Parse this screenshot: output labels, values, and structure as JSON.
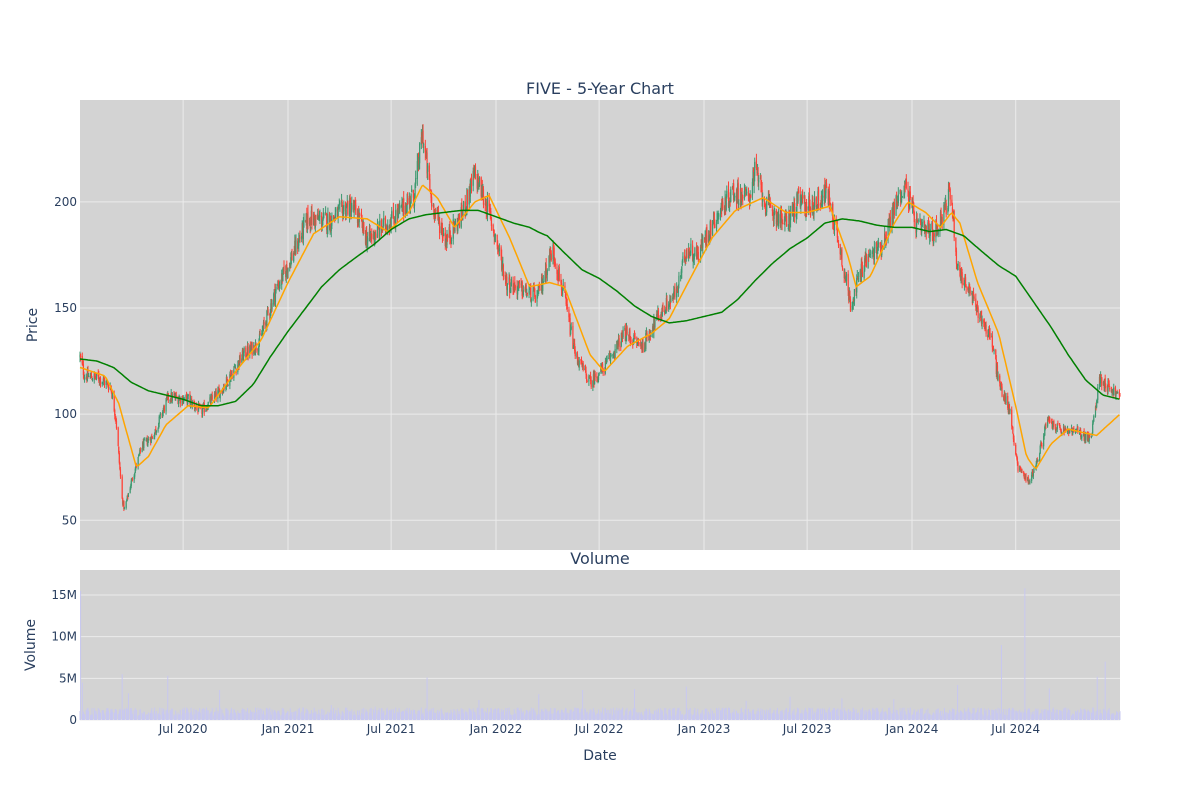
{
  "colors": {
    "plot_bg": "#d3d3d3",
    "grid": "#ebebeb",
    "increasing": "#3d9970",
    "decreasing": "#ff4136",
    "ma_short": "#ffa500",
    "ma_long": "#008000",
    "volume": "#c8c8f0",
    "text": "#2a3f5f"
  },
  "chart_data": [
    {
      "type": "candlestick",
      "title": "FIVE - 5-Year Chart",
      "ylabel": "Price",
      "ylim": [
        36,
        248
      ],
      "yticks": [
        50,
        100,
        150,
        200
      ],
      "xlim": [
        "2020-01-02",
        "2024-12-31"
      ],
      "grid": true,
      "series": [
        {
          "kind": "ohlc"
        },
        {
          "kind": "line",
          "color": "#ffa500"
        },
        {
          "kind": "line",
          "color": "#008000"
        }
      ],
      "price_anchors": [
        [
          "2020-01-02",
          127
        ],
        [
          "2020-01-10",
          118
        ],
        [
          "2020-02-05",
          117
        ],
        [
          "2020-02-25",
          113
        ],
        [
          "2020-03-05",
          98
        ],
        [
          "2020-03-16",
          60
        ],
        [
          "2020-03-20",
          55
        ],
        [
          "2020-04-01",
          68
        ],
        [
          "2020-04-20",
          85
        ],
        [
          "2020-05-10",
          90
        ],
        [
          "2020-06-05",
          108
        ],
        [
          "2020-07-10",
          107
        ],
        [
          "2020-08-01",
          101
        ],
        [
          "2020-09-05",
          111
        ],
        [
          "2020-10-15",
          128
        ],
        [
          "2020-11-10",
          133
        ],
        [
          "2020-12-10",
          158
        ],
        [
          "2021-01-01",
          170
        ],
        [
          "2021-02-05",
          192
        ],
        [
          "2021-03-15",
          191
        ],
        [
          "2021-04-15",
          198
        ],
        [
          "2021-05-01",
          195
        ],
        [
          "2021-05-20",
          182
        ],
        [
          "2021-06-25",
          190
        ],
        [
          "2021-07-15",
          195
        ],
        [
          "2021-08-10",
          203
        ],
        [
          "2021-08-25",
          232
        ],
        [
          "2021-09-10",
          200
        ],
        [
          "2021-10-05",
          182
        ],
        [
          "2021-11-01",
          193
        ],
        [
          "2021-11-25",
          213
        ],
        [
          "2021-12-20",
          195
        ],
        [
          "2022-01-20",
          162
        ],
        [
          "2022-02-20",
          158
        ],
        [
          "2022-03-15",
          155
        ],
        [
          "2022-04-10",
          178
        ],
        [
          "2022-05-01",
          155
        ],
        [
          "2022-05-20",
          128
        ],
        [
          "2022-06-15",
          115
        ],
        [
          "2022-07-10",
          122
        ],
        [
          "2022-08-15",
          138
        ],
        [
          "2022-09-15",
          132
        ],
        [
          "2022-10-10",
          145
        ],
        [
          "2022-11-15",
          158
        ],
        [
          "2022-12-01",
          178
        ],
        [
          "2022-12-20",
          175
        ],
        [
          "2023-01-20",
          192
        ],
        [
          "2023-02-20",
          205
        ],
        [
          "2023-03-20",
          202
        ],
        [
          "2023-04-01",
          215
        ],
        [
          "2023-04-20",
          198
        ],
        [
          "2023-05-25",
          190
        ],
        [
          "2023-06-15",
          200
        ],
        [
          "2023-07-10",
          198
        ],
        [
          "2023-08-05",
          205
        ],
        [
          "2023-08-25",
          182
        ],
        [
          "2023-09-15",
          152
        ],
        [
          "2023-10-10",
          172
        ],
        [
          "2023-11-10",
          180
        ],
        [
          "2023-12-05",
          200
        ],
        [
          "2023-12-20",
          208
        ],
        [
          "2024-01-10",
          188
        ],
        [
          "2024-02-10",
          185
        ],
        [
          "2024-03-10",
          205
        ],
        [
          "2024-03-20",
          170
        ],
        [
          "2024-04-20",
          152
        ],
        [
          "2024-05-20",
          135
        ],
        [
          "2024-06-01",
          115
        ],
        [
          "2024-06-20",
          102
        ],
        [
          "2024-07-05",
          75
        ],
        [
          "2024-07-25",
          68
        ],
        [
          "2024-08-10",
          80
        ],
        [
          "2024-08-25",
          97
        ],
        [
          "2024-09-20",
          92
        ],
        [
          "2024-10-15",
          92
        ],
        [
          "2024-11-10",
          88
        ],
        [
          "2024-11-25",
          117
        ],
        [
          "2024-12-31",
          108
        ]
      ],
      "ma_short_anchors": [
        [
          "2020-01-02",
          122
        ],
        [
          "2020-02-15",
          118
        ],
        [
          "2020-03-10",
          105
        ],
        [
          "2020-04-10",
          75
        ],
        [
          "2020-05-01",
          80
        ],
        [
          "2020-06-01",
          95
        ],
        [
          "2020-07-10",
          104
        ],
        [
          "2020-08-15",
          103
        ],
        [
          "2020-10-01",
          120
        ],
        [
          "2020-11-15",
          135
        ],
        [
          "2021-01-01",
          162
        ],
        [
          "2021-02-15",
          185
        ],
        [
          "2021-04-01",
          193
        ],
        [
          "2021-05-20",
          192
        ],
        [
          "2021-06-25",
          186
        ],
        [
          "2021-08-01",
          195
        ],
        [
          "2021-08-25",
          208
        ],
        [
          "2021-09-20",
          202
        ],
        [
          "2021-10-20",
          188
        ],
        [
          "2021-11-25",
          200
        ],
        [
          "2021-12-20",
          203
        ],
        [
          "2022-01-25",
          183
        ],
        [
          "2022-03-01",
          160
        ],
        [
          "2022-04-05",
          162
        ],
        [
          "2022-05-01",
          160
        ],
        [
          "2022-06-15",
          128
        ],
        [
          "2022-07-10",
          120
        ],
        [
          "2022-08-20",
          132
        ],
        [
          "2022-10-01",
          138
        ],
        [
          "2022-11-01",
          145
        ],
        [
          "2022-12-10",
          165
        ],
        [
          "2023-01-15",
          183
        ],
        [
          "2023-02-25",
          196
        ],
        [
          "2023-04-15",
          202
        ],
        [
          "2023-05-25",
          195
        ],
        [
          "2023-07-01",
          195
        ],
        [
          "2023-08-10",
          198
        ],
        [
          "2023-09-10",
          175
        ],
        [
          "2023-09-25",
          160
        ],
        [
          "2023-10-20",
          165
        ],
        [
          "2023-12-01",
          190
        ],
        [
          "2023-12-25",
          200
        ],
        [
          "2024-01-25",
          195
        ],
        [
          "2024-02-20",
          188
        ],
        [
          "2024-03-10",
          195
        ],
        [
          "2024-03-25",
          190
        ],
        [
          "2024-04-25",
          162
        ],
        [
          "2024-06-01",
          138
        ],
        [
          "2024-06-30",
          105
        ],
        [
          "2024-07-20",
          80
        ],
        [
          "2024-08-05",
          74
        ],
        [
          "2024-09-01",
          86
        ],
        [
          "2024-10-01",
          93
        ],
        [
          "2024-11-01",
          91
        ],
        [
          "2024-11-20",
          90
        ],
        [
          "2024-12-31",
          100
        ]
      ],
      "ma_long_anchors": [
        [
          "2020-01-02",
          126
        ],
        [
          "2020-02-01",
          125
        ],
        [
          "2020-03-01",
          122
        ],
        [
          "2020-04-01",
          115
        ],
        [
          "2020-05-01",
          111
        ],
        [
          "2020-06-01",
          109
        ],
        [
          "2020-07-01",
          107
        ],
        [
          "2020-08-01",
          104
        ],
        [
          "2020-09-01",
          104
        ],
        [
          "2020-10-01",
          106
        ],
        [
          "2020-11-01",
          114
        ],
        [
          "2020-12-01",
          127
        ],
        [
          "2021-01-01",
          139
        ],
        [
          "2021-02-01",
          150
        ],
        [
          "2021-03-01",
          160
        ],
        [
          "2021-04-01",
          168
        ],
        [
          "2021-05-01",
          174
        ],
        [
          "2021-06-01",
          180
        ],
        [
          "2021-07-01",
          187
        ],
        [
          "2021-08-01",
          192
        ],
        [
          "2021-09-01",
          194
        ],
        [
          "2021-10-01",
          195
        ],
        [
          "2021-11-01",
          196
        ],
        [
          "2021-12-01",
          196
        ],
        [
          "2022-01-01",
          193
        ],
        [
          "2022-02-01",
          190
        ],
        [
          "2022-03-01",
          188
        ],
        [
          "2022-03-15",
          186
        ],
        [
          "2022-04-01",
          184
        ],
        [
          "2022-05-01",
          176
        ],
        [
          "2022-06-01",
          168
        ],
        [
          "2022-07-01",
          164
        ],
        [
          "2022-08-01",
          158
        ],
        [
          "2022-09-01",
          151
        ],
        [
          "2022-10-01",
          146
        ],
        [
          "2022-11-01",
          143
        ],
        [
          "2022-12-01",
          144
        ],
        [
          "2023-01-01",
          146
        ],
        [
          "2023-02-01",
          148
        ],
        [
          "2023-03-01",
          154
        ],
        [
          "2023-04-01",
          163
        ],
        [
          "2023-05-01",
          171
        ],
        [
          "2023-06-01",
          178
        ],
        [
          "2023-07-01",
          183
        ],
        [
          "2023-08-01",
          190
        ],
        [
          "2023-09-01",
          192
        ],
        [
          "2023-10-01",
          191
        ],
        [
          "2023-11-01",
          189
        ],
        [
          "2023-12-01",
          188
        ],
        [
          "2024-01-01",
          188
        ],
        [
          "2024-02-01",
          186
        ],
        [
          "2024-03-01",
          187
        ],
        [
          "2024-04-01",
          184
        ],
        [
          "2024-05-01",
          177
        ],
        [
          "2024-06-01",
          170
        ],
        [
          "2024-07-01",
          165
        ],
        [
          "2024-08-01",
          153
        ],
        [
          "2024-09-01",
          141
        ],
        [
          "2024-10-01",
          128
        ],
        [
          "2024-11-01",
          116
        ],
        [
          "2024-12-01",
          109
        ],
        [
          "2024-12-31",
          107
        ]
      ]
    },
    {
      "type": "bar",
      "title": "Volume",
      "xlabel": "Date",
      "ylabel": "Volume",
      "ylim": [
        0,
        18000000
      ],
      "yticks": [
        0,
        5000000,
        10000000,
        15000000
      ],
      "ytick_labels": [
        "0",
        "5M",
        "10M",
        "15M"
      ],
      "xticks": [
        "2020-07-01",
        "2021-01-01",
        "2021-07-01",
        "2022-01-01",
        "2022-07-01",
        "2023-01-01",
        "2023-07-01",
        "2024-01-01",
        "2024-07-01"
      ],
      "xtick_labels": [
        "Jul 2020",
        "Jan 2021",
        "Jul 2021",
        "Jan 2022",
        "Jul 2022",
        "Jan 2023",
        "Jul 2023",
        "Jan 2024",
        "Jul 2024"
      ],
      "base_volume": 1000000,
      "spikes": [
        [
          "2020-01-03",
          15500000
        ],
        [
          "2020-01-06",
          4500000
        ],
        [
          "2020-03-16",
          5500000
        ],
        [
          "2020-03-27",
          3200000
        ],
        [
          "2020-06-04",
          5300000
        ],
        [
          "2020-09-03",
          3600000
        ],
        [
          "2021-03-18",
          1800000
        ],
        [
          "2021-06-03",
          1600000
        ],
        [
          "2021-09-02",
          5100000
        ],
        [
          "2021-12-02",
          2400000
        ],
        [
          "2022-03-17",
          3100000
        ],
        [
          "2022-06-02",
          3600000
        ],
        [
          "2022-09-01",
          3700000
        ],
        [
          "2022-12-01",
          4000000
        ],
        [
          "2023-03-16",
          2300000
        ],
        [
          "2023-06-01",
          2800000
        ],
        [
          "2023-08-31",
          2600000
        ],
        [
          "2023-11-30",
          2500000
        ],
        [
          "2024-03-21",
          4200000
        ],
        [
          "2024-06-06",
          9000000
        ],
        [
          "2024-07-17",
          15800000
        ],
        [
          "2024-08-29",
          3800000
        ],
        [
          "2024-11-21",
          5200000
        ],
        [
          "2024-12-05",
          7000000
        ]
      ]
    }
  ]
}
